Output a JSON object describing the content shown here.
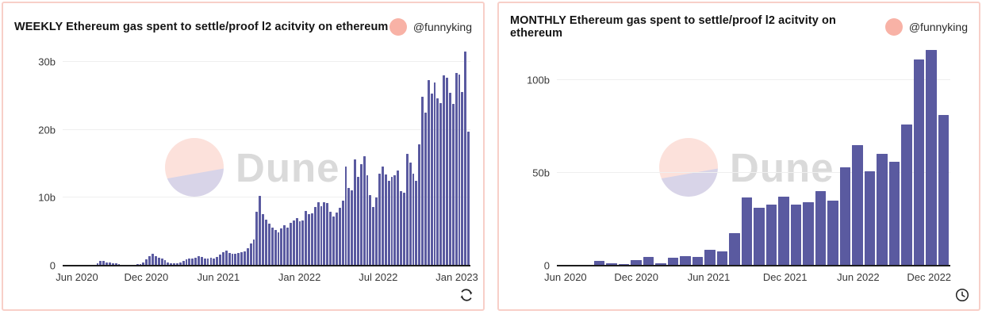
{
  "page": {
    "background": "#ffffff"
  },
  "colors": {
    "bar": "#5a5aa0",
    "panel_border": "#f8cfc8",
    "avatar": "#f8b2a6",
    "watermark_pink": "#fce1db",
    "watermark_lavender": "#d8d4e8",
    "watermark_text": "#dadada",
    "gridline": "#efefef",
    "axis_line": "#1d1d1d",
    "title_text": "#141414",
    "axis_text": "#383838"
  },
  "panels": [
    {
      "title": "WEEKLY Ethereum gas spent to settle/proof l2 acitvity on ethereum",
      "author": "@funnyking",
      "watermark": "Dune",
      "corner_icon": "refresh-icon"
    },
    {
      "title": "MONTHLY Ethereum gas spent to settle/proof l2 acitvity on ethereum",
      "author": "@funnyking",
      "watermark": "Dune",
      "corner_icon": "clock-icon"
    }
  ],
  "chart_data": [
    {
      "type": "bar",
      "title": "WEEKLY Ethereum gas spent to settle/proof l2 acitvity on ethereum",
      "xlabel": "",
      "ylabel": "",
      "x_unit": "week",
      "x_range": [
        "Jun 2020",
        "Jan 2023"
      ],
      "ylim": [
        0,
        31.9
      ],
      "grid": true,
      "bar_color": "#5a5aa0",
      "y_ticks": [
        {
          "label": "0",
          "value": 0
        },
        {
          "label": "10b",
          "value": 10
        },
        {
          "label": "20b",
          "value": 20
        },
        {
          "label": "30b",
          "value": 30
        }
      ],
      "x_ticks": [
        {
          "label": "Jun 2020",
          "pos": 0.035
        },
        {
          "label": "Dec 2020",
          "pos": 0.205
        },
        {
          "label": "Jun 2021",
          "pos": 0.382
        },
        {
          "label": "Jan 2022",
          "pos": 0.581
        },
        {
          "label": "Jul 2022",
          "pos": 0.774
        },
        {
          "label": "Jan 2023",
          "pos": 0.967
        }
      ],
      "values": [
        0.05,
        0.06,
        0.05,
        0.07,
        0.06,
        0.08,
        0.07,
        0.1,
        0.1,
        0.12,
        0.15,
        0.35,
        0.75,
        0.65,
        0.5,
        0.45,
        0.4,
        0.3,
        0.2,
        0.15,
        0.12,
        0.1,
        0.12,
        0.15,
        0.2,
        0.25,
        0.45,
        0.9,
        1.4,
        1.7,
        1.35,
        1.2,
        1.0,
        0.85,
        0.5,
        0.4,
        0.35,
        0.3,
        0.45,
        0.7,
        0.9,
        1.1,
        1.0,
        1.2,
        1.4,
        1.3,
        1.1,
        1.1,
        1.2,
        1.0,
        1.3,
        1.6,
        2.0,
        2.2,
        1.9,
        1.7,
        1.8,
        1.9,
        2.0,
        2.1,
        2.6,
        3.3,
        3.8,
        7.9,
        10.3,
        7.6,
        6.8,
        6.2,
        5.6,
        5.3,
        4.9,
        5.5,
        6.0,
        5.6,
        6.3,
        6.7,
        7.0,
        6.5,
        6.7,
        8.1,
        7.6,
        7.7,
        8.7,
        9.4,
        8.8,
        9.4,
        9.2,
        7.9,
        7.3,
        7.8,
        8.5,
        9.6,
        14.6,
        11.5,
        11.1,
        15.7,
        13.1,
        15.0,
        16.1,
        13.3,
        10.4,
        8.7,
        10.0,
        13.6,
        14.6,
        13.4,
        12.5,
        13.1,
        13.3,
        14.0,
        11.0,
        10.8,
        16.5,
        15.2,
        13.6,
        12.5,
        17.9,
        24.9,
        22.6,
        27.4,
        25.3,
        27.0,
        24.7,
        24.0,
        28.1,
        27.7,
        25.5,
        23.8,
        28.4,
        28.2,
        25.6,
        31.6,
        19.8
      ]
    },
    {
      "type": "bar",
      "title": "MONTHLY Ethereum gas spent to settle/proof l2 acitvity on ethereum",
      "xlabel": "",
      "ylabel": "",
      "x_unit": "month",
      "x_range": [
        "Jun 2020",
        "Jan 2023"
      ],
      "ylim": [
        0,
        116.5
      ],
      "grid": true,
      "bar_color": "#5a5aa0",
      "y_ticks": [
        {
          "label": "0",
          "value": 0
        },
        {
          "label": "50b",
          "value": 50
        },
        {
          "label": "100b",
          "value": 100
        }
      ],
      "x_ticks": [
        {
          "label": "Jun 2020",
          "pos": 0.022
        },
        {
          "label": "Dec 2020",
          "pos": 0.202
        },
        {
          "label": "Jun 2021",
          "pos": 0.386
        },
        {
          "label": "Dec 2021",
          "pos": 0.58
        },
        {
          "label": "Jun 2022",
          "pos": 0.766
        },
        {
          "label": "Dec 2022",
          "pos": 0.946
        }
      ],
      "categories": [
        "Jun 2020",
        "Jul 2020",
        "Aug 2020",
        "Sep 2020",
        "Oct 2020",
        "Nov 2020",
        "Dec 2020",
        "Jan 2021",
        "Feb 2021",
        "Mar 2021",
        "Apr 2021",
        "May 2021",
        "Jun 2021",
        "Jul 2021",
        "Aug 2021",
        "Sep 2021",
        "Oct 2021",
        "Nov 2021",
        "Dec 2021",
        "Jan 2022",
        "Feb 2022",
        "Mar 2022",
        "Apr 2022",
        "May 2022",
        "Jun 2022",
        "Jul 2022",
        "Aug 2022",
        "Sep 2022",
        "Oct 2022",
        "Nov 2022",
        "Dec 2022",
        "Jan 2023"
      ],
      "values": [
        0.2,
        0.3,
        0.4,
        2.5,
        1.1,
        0.8,
        2.8,
        4.9,
        1.4,
        4.2,
        5.3,
        4.6,
        8.4,
        7.7,
        17.5,
        36.5,
        31,
        33,
        37,
        33,
        34,
        40,
        35,
        53,
        65,
        51,
        60,
        56,
        76,
        111,
        116,
        81
      ]
    }
  ]
}
